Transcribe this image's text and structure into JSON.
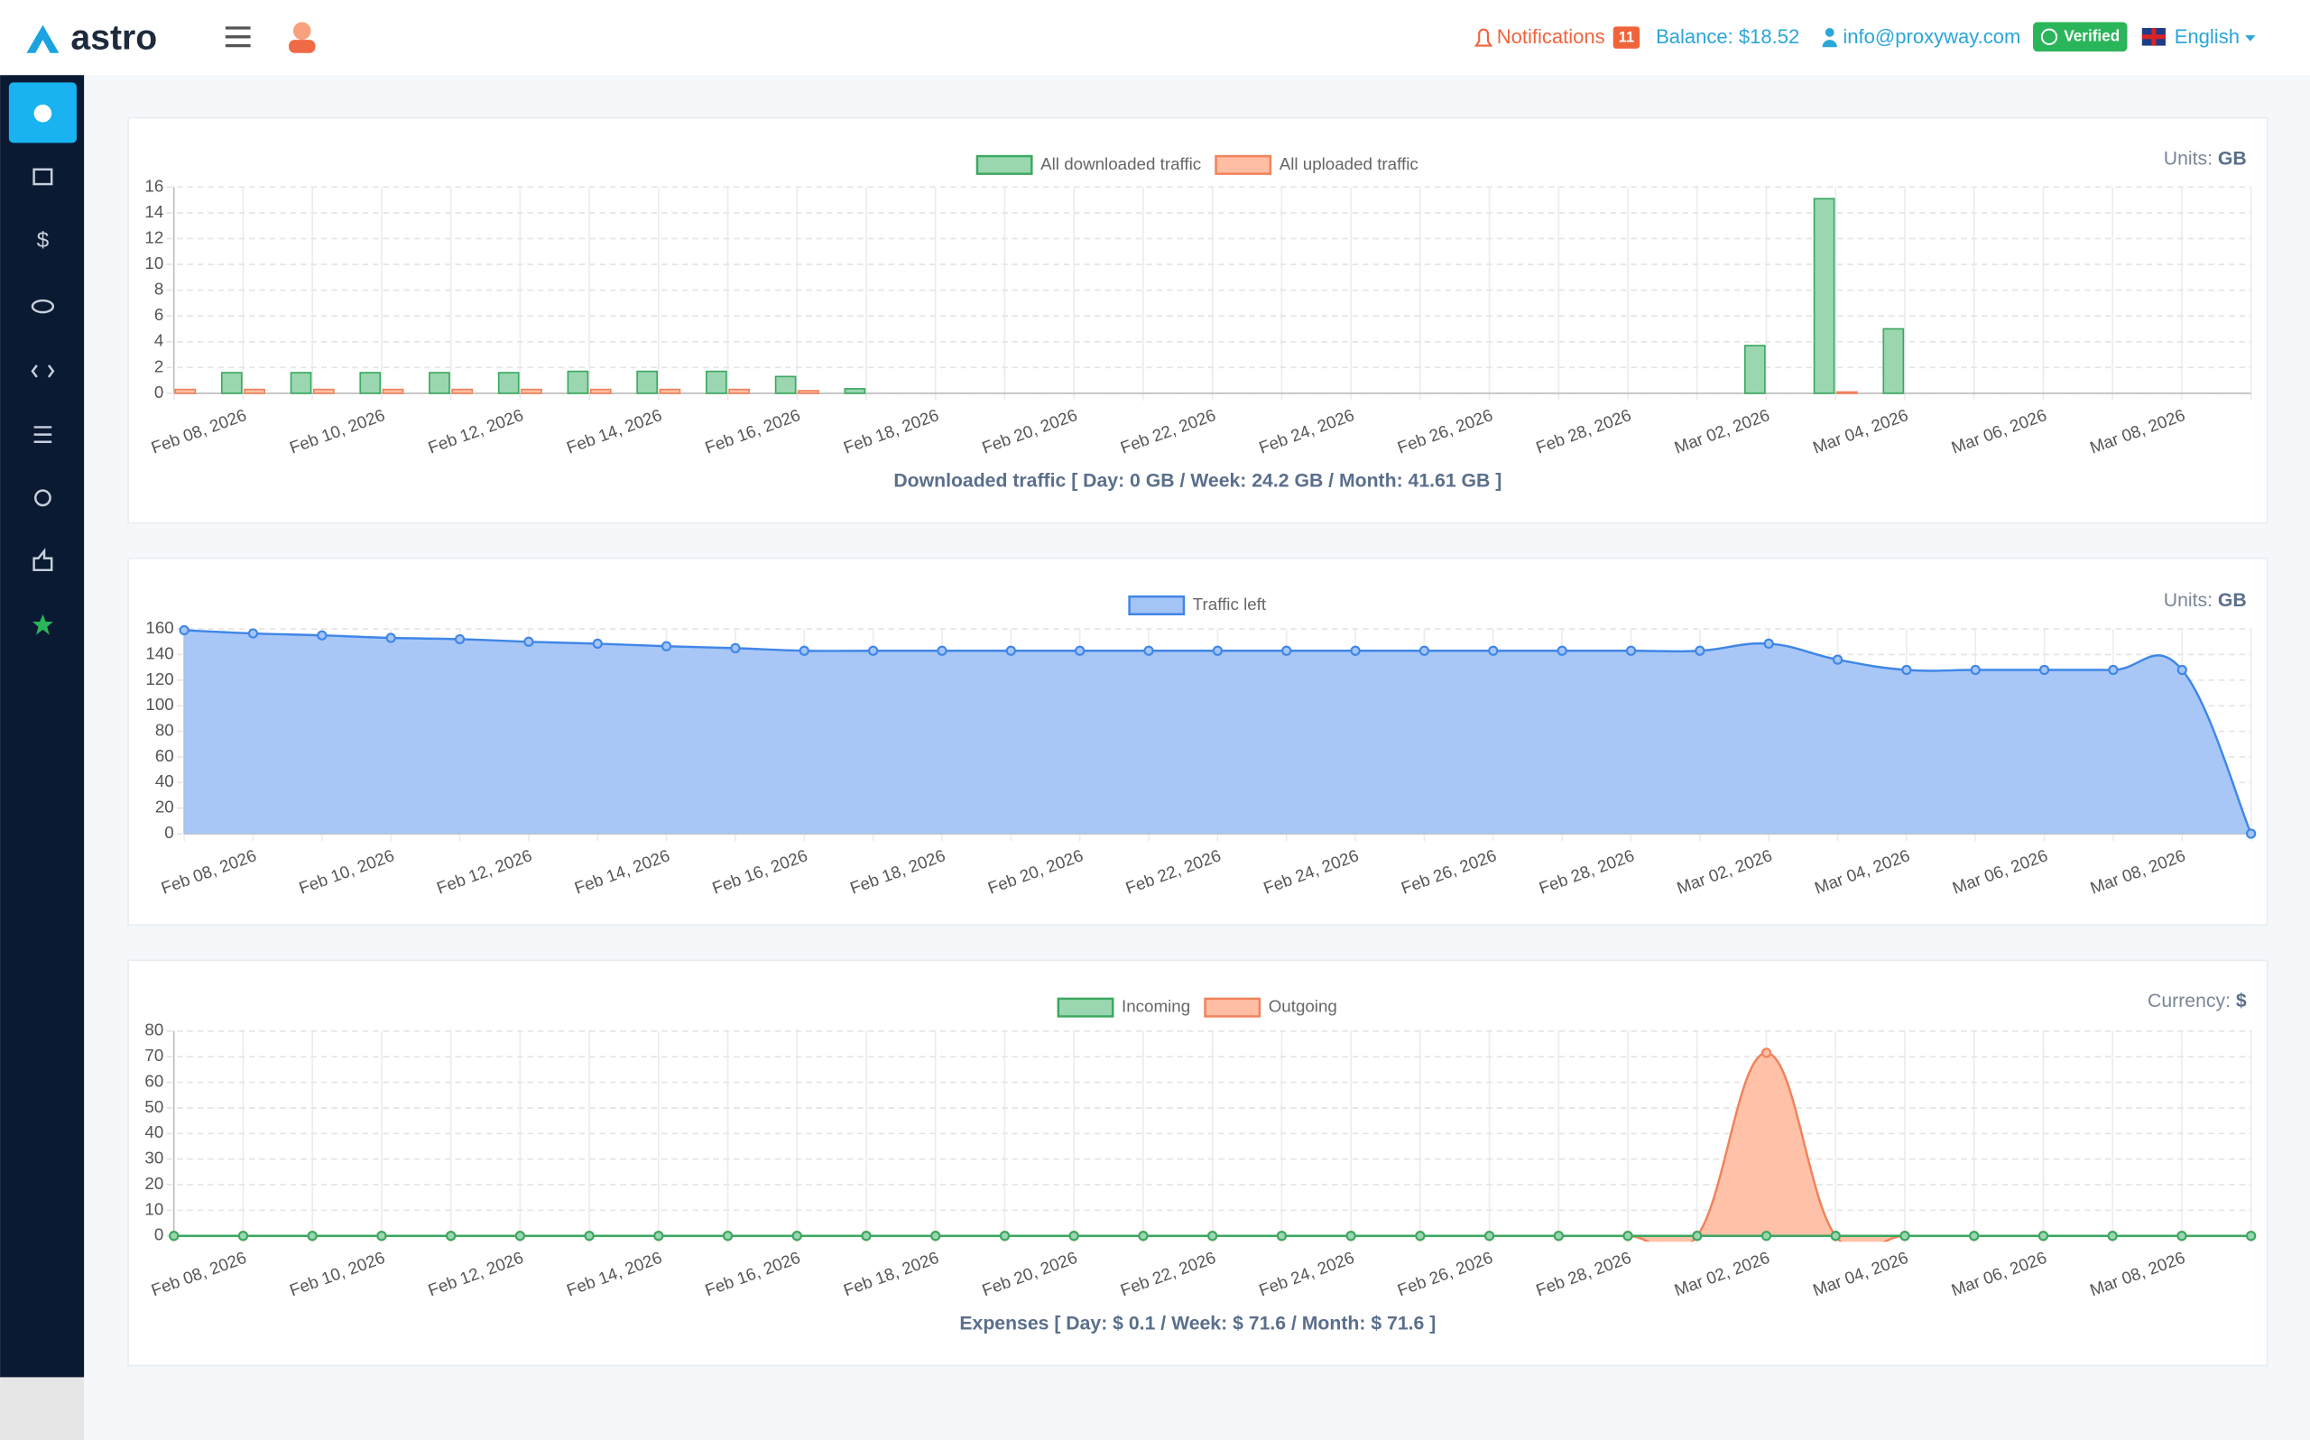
{
  "header": {
    "logo": "astro",
    "notifications": "Notifications",
    "notification_count": 11,
    "balance": "Balance: $18.52",
    "email": "info@proxyway.com",
    "verified": "Verified",
    "language": "English"
  },
  "chart_data": [
    {
      "type": "bar",
      "units_label": "Units:",
      "units": "GB",
      "footer": "Downloaded traffic [ Day: 0 GB / Week: 24.2 GB / Month: 41.61 GB ]",
      "categories": [
        null,
        "Feb 08, 2026",
        null,
        "Feb 10, 2026",
        null,
        "Feb 12, 2026",
        null,
        "Feb 14, 2026",
        null,
        "Feb 16, 2026",
        null,
        "Feb 18, 2026",
        null,
        "Feb 20, 2026",
        null,
        "Feb 22, 2026",
        null,
        "Feb 24, 2026",
        null,
        "Feb 26, 2026",
        null,
        "Feb 28, 2026",
        null,
        "Mar 02, 2026",
        null,
        "Mar 04, 2026",
        null,
        "Mar 06, 2026",
        null,
        "Mar 08, 2026",
        null
      ],
      "series": [
        {
          "name": "All downloaded traffic",
          "color": "#3aa860",
          "fill": "#9ad7b0",
          "values": [
            0,
            1.6,
            1.6,
            1.6,
            1.6,
            1.6,
            1.7,
            1.7,
            1.7,
            1.3,
            0.35,
            0,
            0,
            0,
            0,
            0,
            0,
            0,
            0,
            0,
            0,
            0,
            0,
            3.7,
            15.1,
            5,
            0,
            0,
            0,
            0,
            0
          ]
        },
        {
          "name": "All uploaded traffic",
          "color": "#f0825a",
          "fill": "#ffbea3",
          "values": [
            0.3,
            0.3,
            0.3,
            0.3,
            0.3,
            0.3,
            0.3,
            0.3,
            0.3,
            0.2,
            0,
            0,
            0,
            0,
            0,
            0,
            0,
            0,
            0,
            0,
            0,
            0,
            0,
            0,
            0.1,
            0,
            0,
            0,
            0,
            0,
            0
          ]
        }
      ],
      "ylim": [
        0,
        16
      ],
      "yticks": [
        0,
        2,
        4,
        6,
        8,
        10,
        12,
        14,
        16
      ],
      "grid": true
    },
    {
      "type": "area",
      "units_label": "Units:",
      "units": "GB",
      "categories": [
        null,
        "Feb 08, 2026",
        null,
        "Feb 10, 2026",
        null,
        "Feb 12, 2026",
        null,
        "Feb 14, 2026",
        null,
        "Feb 16, 2026",
        null,
        "Feb 18, 2026",
        null,
        "Feb 20, 2026",
        null,
        "Feb 22, 2026",
        null,
        "Feb 24, 2026",
        null,
        "Feb 26, 2026",
        null,
        "Feb 28, 2026",
        null,
        "Mar 02, 2026",
        null,
        "Mar 04, 2026",
        null,
        "Mar 06, 2026",
        null,
        "Mar 08, 2026",
        null
      ],
      "series": [
        {
          "name": "Traffic left",
          "color": "#3f86e8",
          "fill": "#a3c4f5",
          "values": [
            159,
            156.5,
            155,
            153,
            152,
            150,
            148.5,
            146.5,
            145,
            143,
            143,
            143,
            143,
            143,
            143,
            143,
            143,
            143,
            143,
            143,
            143,
            143,
            143,
            148.5,
            136,
            128,
            128,
            128,
            128,
            128,
            0
          ]
        }
      ],
      "ylim": [
        0,
        160
      ],
      "yticks": [
        0,
        20,
        40,
        60,
        80,
        100,
        120,
        140,
        160
      ],
      "grid": true
    },
    {
      "type": "area",
      "units_label": "Currency:",
      "units": "$",
      "footer": "Expenses [ Day: $ 0.1 / Week: $ 71.6 / Month: $ 71.6 ]",
      "categories": [
        null,
        "Feb 08, 2026",
        null,
        "Feb 10, 2026",
        null,
        "Feb 12, 2026",
        null,
        "Feb 14, 2026",
        null,
        "Feb 16, 2026",
        null,
        "Feb 18, 2026",
        null,
        "Feb 20, 2026",
        null,
        "Feb 22, 2026",
        null,
        "Feb 24, 2026",
        null,
        "Feb 26, 2026",
        null,
        "Feb 28, 2026",
        null,
        "Mar 02, 2026",
        null,
        "Mar 04, 2026",
        null,
        "Mar 06, 2026",
        null,
        "Mar 08, 2026",
        null
      ],
      "series": [
        {
          "name": "Incoming",
          "color": "#3aa860",
          "fill": "#9ad7b0",
          "values": [
            0,
            0,
            0,
            0,
            0,
            0,
            0,
            0,
            0,
            0,
            0,
            0,
            0,
            0,
            0,
            0,
            0,
            0,
            0,
            0,
            0,
            0,
            0,
            0,
            0,
            0,
            0,
            0,
            0,
            0,
            0
          ]
        },
        {
          "name": "Outgoing",
          "color": "#f0825a",
          "fill": "#ffbea3",
          "values": [
            0,
            0,
            0,
            0,
            0,
            0,
            0,
            0,
            0,
            0,
            0,
            0,
            0,
            0,
            0,
            0,
            0,
            0,
            0,
            0,
            0,
            0,
            0,
            71.5,
            0,
            0,
            0,
            0,
            0,
            0,
            0
          ]
        }
      ],
      "ylim": [
        0,
        80
      ],
      "yticks": [
        0,
        10,
        20,
        30,
        40,
        50,
        60,
        70,
        80
      ],
      "grid": true
    }
  ]
}
